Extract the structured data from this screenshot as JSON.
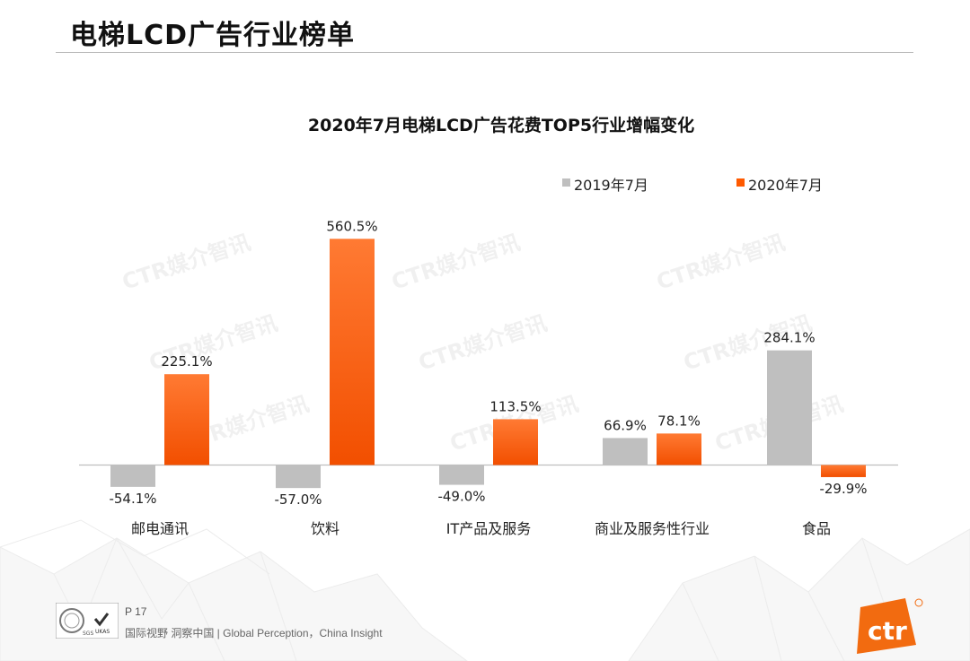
{
  "page": {
    "title": "电梯LCD广告行业榜单"
  },
  "footer": {
    "page_number": "P 17",
    "slogan": "国际视野  洞察中国 |  Global Perception，China Insight",
    "logo_text": "ctr",
    "cert_labels": [
      "SGS",
      "UKAS"
    ]
  },
  "watermark": {
    "text": "CTR媒介智讯"
  },
  "colors": {
    "series_2019": "#bfbfbf",
    "series_2020": "#ff5a00",
    "brand_orange": "#f26b10"
  },
  "chart_data": {
    "type": "bar",
    "title": "2020年7月电梯LCD广告花费TOP5行业增幅变化",
    "categories": [
      "邮电通讯",
      "饮料",
      "IT产品及服务",
      "商业及服务性行业",
      "食品"
    ],
    "series": [
      {
        "name": "2019年7月",
        "values": [
          -54.1,
          -57.0,
          -49.0,
          66.9,
          284.1
        ]
      },
      {
        "name": "2020年7月",
        "values": [
          225.1,
          560.5,
          113.5,
          78.1,
          -29.9
        ]
      }
    ],
    "value_labels": [
      [
        "-54.1%",
        "-57.0%",
        "-49.0%",
        "66.9%",
        "284.1%"
      ],
      [
        "225.1%",
        "560.5%",
        "113.5%",
        "78.1%",
        "-29.9%"
      ]
    ],
    "unit": "%",
    "legend_position": "top-right",
    "xlabel": "",
    "ylabel": "",
    "grid": false
  }
}
